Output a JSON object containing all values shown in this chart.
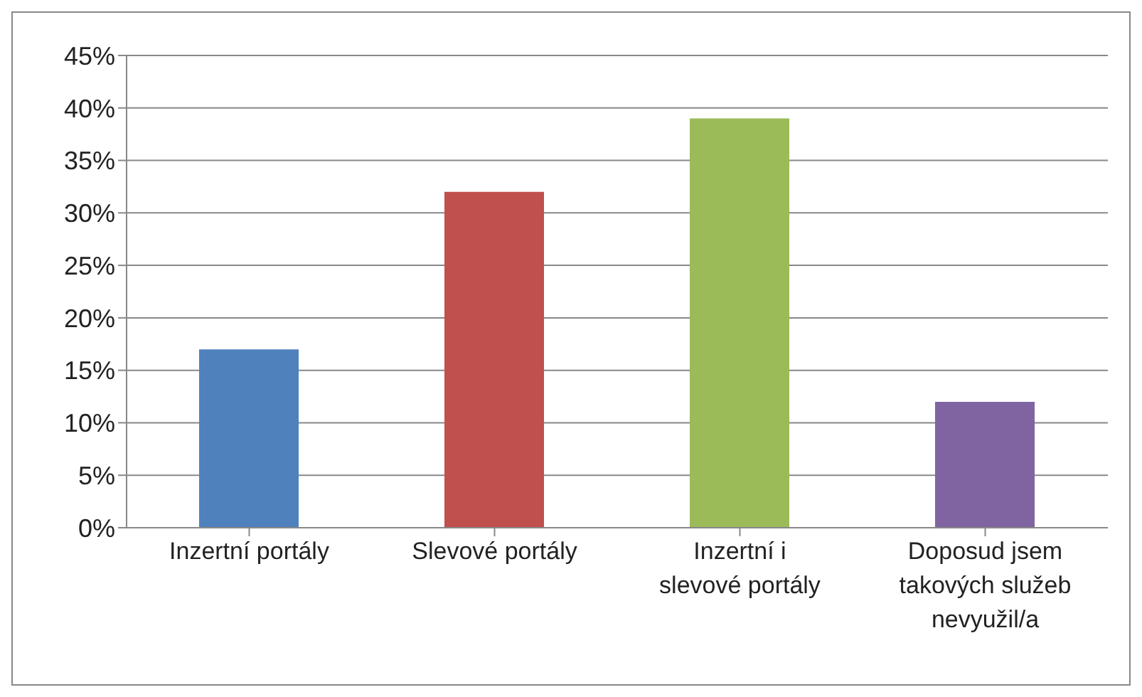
{
  "chart_data": {
    "type": "bar",
    "categories": [
      "Inzertní portály",
      "Slevové portály",
      "Inzertní i slevové portály",
      "Doposud jsem takových služeb nevyužil/a"
    ],
    "values": [
      17,
      32,
      39,
      12
    ],
    "colors": [
      "#4f81bd",
      "#c0504d",
      "#9bbb59",
      "#8064a2"
    ],
    "ylim": [
      0,
      45
    ],
    "yticks": [
      {
        "value": 0,
        "label": "0%"
      },
      {
        "value": 5,
        "label": "5%"
      },
      {
        "value": 10,
        "label": "10%"
      },
      {
        "value": 15,
        "label": "15%"
      },
      {
        "value": 20,
        "label": "20%"
      },
      {
        "value": 25,
        "label": "25%"
      },
      {
        "value": 30,
        "label": "30%"
      },
      {
        "value": 35,
        "label": "35%"
      },
      {
        "value": 40,
        "label": "40%"
      },
      {
        "value": 45,
        "label": "45%"
      }
    ],
    "grid": "y"
  }
}
